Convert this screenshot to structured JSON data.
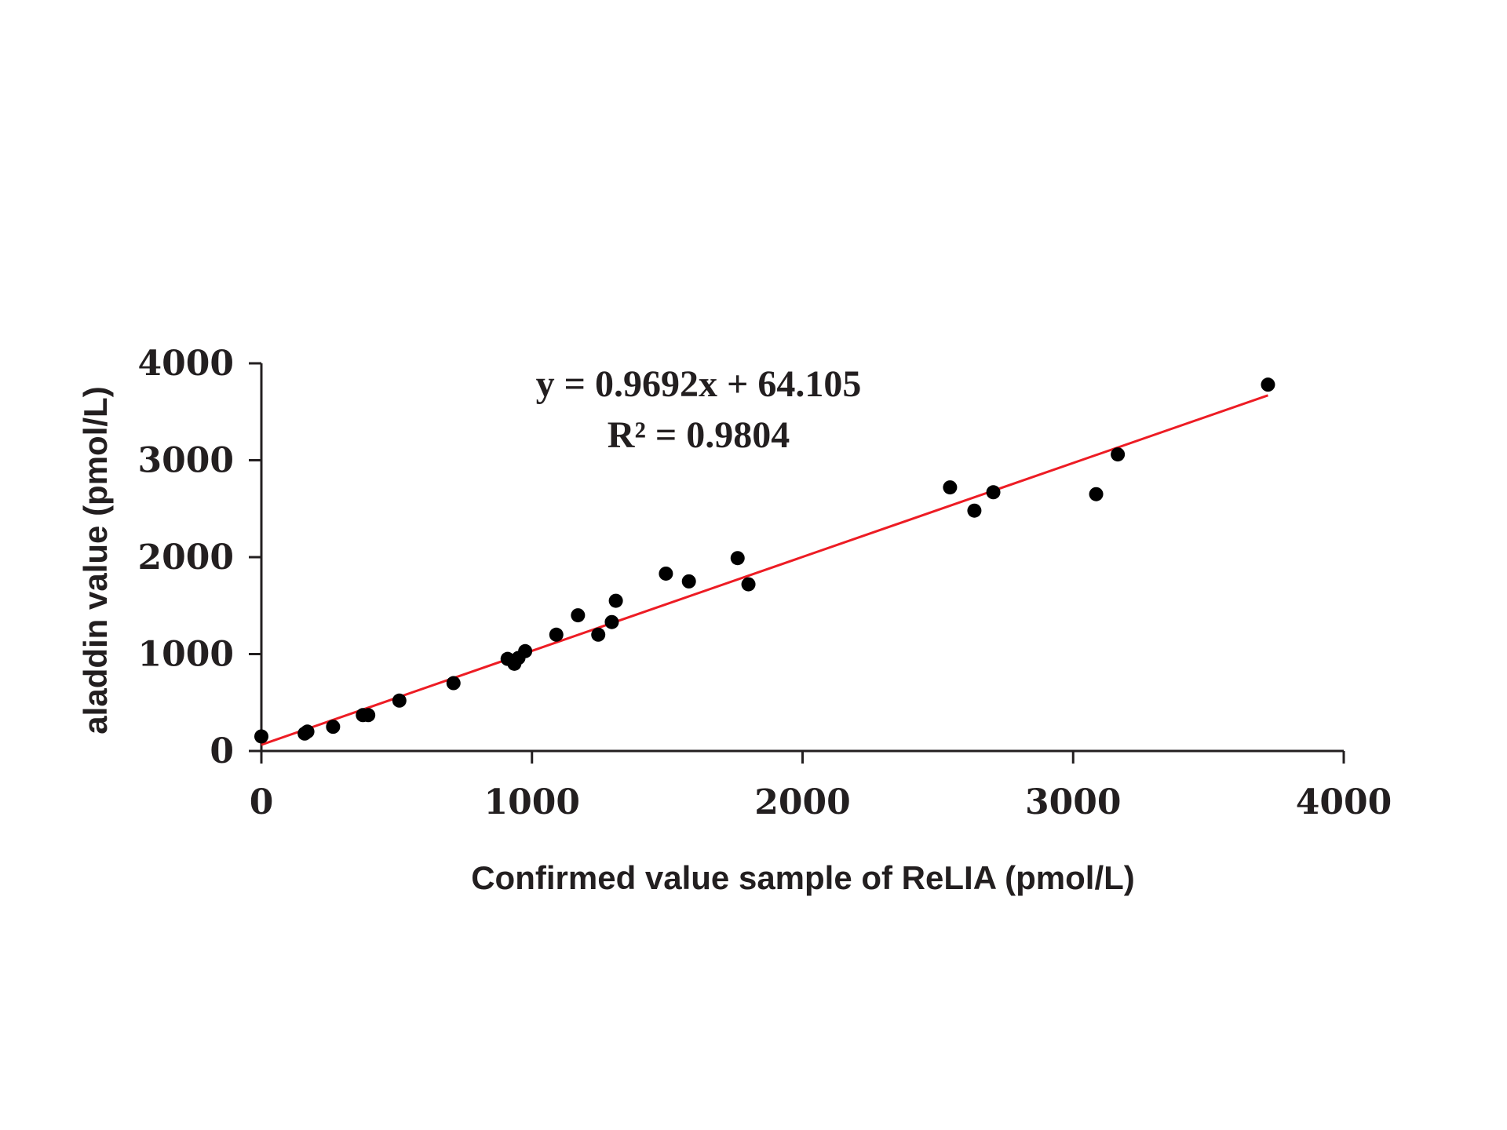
{
  "chart_data": {
    "type": "scatter",
    "title": "",
    "xlabel": "Confirmed value sample of ReLIA (pmol/L)",
    "ylabel": "aladdin value (pmol/L)",
    "xlim": [
      0,
      4000
    ],
    "ylim": [
      0,
      4000
    ],
    "xticks": [
      "0",
      "1000",
      "2000",
      "3000",
      "4000"
    ],
    "yticks": [
      "0",
      "1000",
      "2000",
      "3000",
      "4000"
    ],
    "grid": false,
    "colors": {
      "points": "#000000",
      "trendline": "#ed1c24",
      "axis": "#231f20"
    },
    "series": [
      {
        "name": "samples",
        "x": [
          0,
          160,
          170,
          265,
          375,
          395,
          510,
          710,
          910,
          935,
          950,
          975,
          1090,
          1170,
          1245,
          1295,
          1310,
          1495,
          1580,
          1760,
          1800,
          2545,
          2635,
          2705,
          3085,
          3165,
          3720
        ],
        "y": [
          150,
          180,
          200,
          250,
          370,
          370,
          520,
          700,
          950,
          900,
          960,
          1030,
          1200,
          1400,
          1200,
          1330,
          1550,
          1830,
          1750,
          1990,
          1720,
          2720,
          2480,
          2670,
          2650,
          3060,
          3780
        ]
      }
    ],
    "trendline": {
      "slope": 0.9692,
      "intercept": 64.105,
      "x_range": [
        0,
        3720
      ],
      "equation_label": "y = 0.9692x + 64.105",
      "r2_label": "R² = 0.9804"
    }
  }
}
